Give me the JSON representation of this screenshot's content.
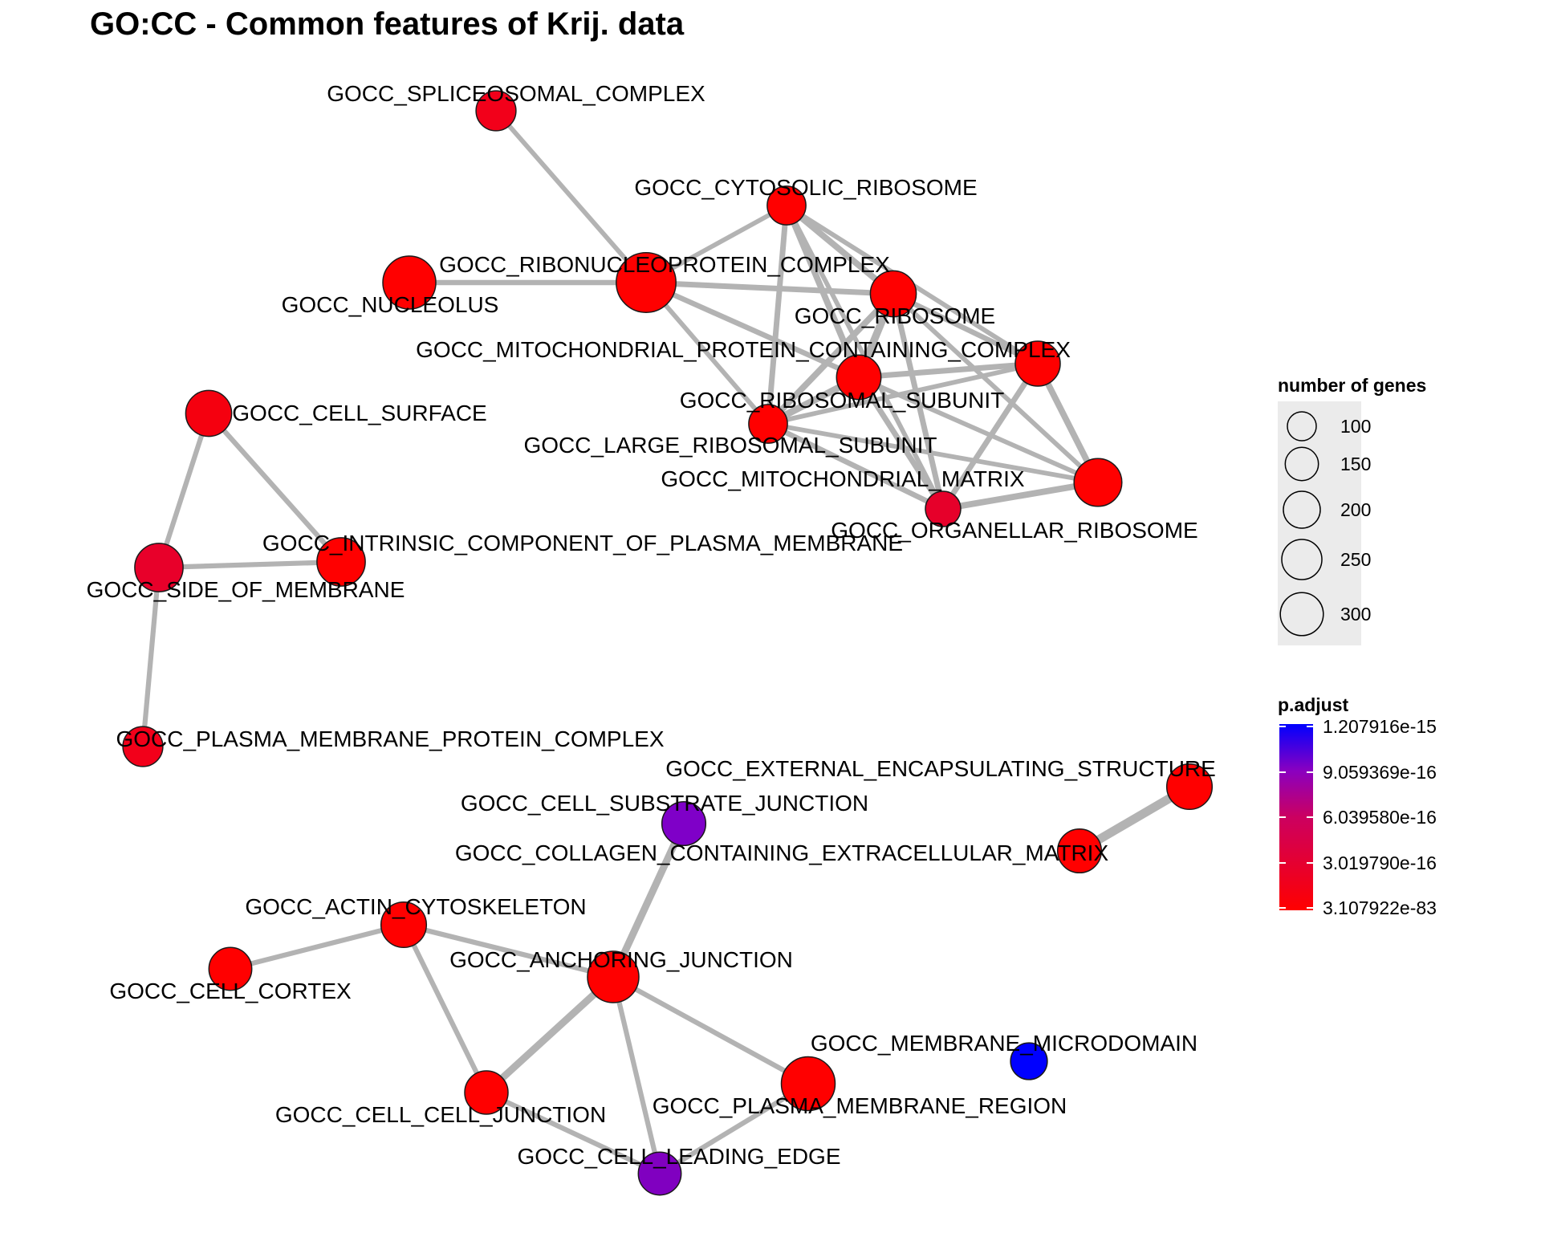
{
  "title": "GO:CC - Common features of Krij. data",
  "colors": {
    "edge": "#b3b3b3",
    "node_stroke": "#1a1a1a",
    "low_p": "#ff0000",
    "high_p": "#0000ff",
    "size_legend_bg": "#ebebeb"
  },
  "nodes": [
    {
      "id": "spliceosomal",
      "label": "GOCC_SPLICEOSOMAL_COMPLEX",
      "genes": 105,
      "color": "#f2001a"
    },
    {
      "id": "cytosolic_ribosome",
      "label": "GOCC_CYTOSOLIC_RIBOSOME",
      "genes": 95,
      "color": "#ff0000"
    },
    {
      "id": "ribonucleoprotein",
      "label": "GOCC_RIBONUCLEOPROTEIN_COMPLEX",
      "genes": 330,
      "color": "#ff0000"
    },
    {
      "id": "nucleolus",
      "label": "GOCC_NUCLEOLUS",
      "genes": 240,
      "color": "#ff0000"
    },
    {
      "id": "ribosome",
      "label": "GOCC_RIBOSOME",
      "genes": 160,
      "color": "#ff0000"
    },
    {
      "id": "mito_protein_complex",
      "label": "GOCC_MITOCHONDRIAL_PROTEIN_CONTAINING_COMPLEX",
      "genes": 150,
      "color": "#ff0000"
    },
    {
      "id": "ribosomal_subunit",
      "label": "GOCC_RIBOSOMAL_SUBUNIT",
      "genes": 145,
      "color": "#ff0000"
    },
    {
      "id": "large_ribosomal_subunit",
      "label": "GOCC_LARGE_RIBOSOMAL_SUBUNIT",
      "genes": 95,
      "color": "#ff0000"
    },
    {
      "id": "mito_matrix",
      "label": "GOCC_MITOCHONDRIAL_MATRIX",
      "genes": 180,
      "color": "#ff0000"
    },
    {
      "id": "organellar_ribosome",
      "label": "GOCC_ORGANELLAR_RIBOSOME",
      "genes": 70,
      "color": "#e6002a"
    },
    {
      "id": "cell_surface",
      "label": "GOCC_CELL_SURFACE",
      "genes": 160,
      "color": "#f5000f"
    },
    {
      "id": "intrinsic_pm",
      "label": "GOCC_INTRINSIC_COMPONENT_OF_PLASMA_MEMBRANE",
      "genes": 185,
      "color": "#ff0000"
    },
    {
      "id": "side_of_membrane",
      "label": "GOCC_SIDE_OF_MEMBRANE",
      "genes": 185,
      "color": "#e8002a"
    },
    {
      "id": "pm_protein_complex",
      "label": "GOCC_PLASMA_MEMBRANE_PROTEIN_COMPLEX",
      "genes": 105,
      "color": "#f2001a"
    },
    {
      "id": "external_encapsulating",
      "label": "GOCC_EXTERNAL_ENCAPSULATING_STRUCTURE",
      "genes": 155,
      "color": "#ff0000"
    },
    {
      "id": "cell_substrate_junction",
      "label": "GOCC_CELL_SUBSTRATE_JUNCTION",
      "genes": 140,
      "color": "#7f00c8"
    },
    {
      "id": "collagen_ecm",
      "label": "GOCC_COLLAGEN_CONTAINING_EXTRACELLULAR_MATRIX",
      "genes": 140,
      "color": "#ff0000"
    },
    {
      "id": "actin_cytoskeleton",
      "label": "GOCC_ACTIN_CYTOSKELETON",
      "genes": 155,
      "color": "#ff0000"
    },
    {
      "id": "cell_cortex",
      "label": "GOCC_CELL_CORTEX",
      "genes": 130,
      "color": "#ff0000"
    },
    {
      "id": "anchoring_junction",
      "label": "GOCC_ANCHORING_JUNCTION",
      "genes": 220,
      "color": "#ff0000"
    },
    {
      "id": "membrane_microdomain",
      "label": "GOCC_MEMBRANE_MICRODOMAIN",
      "genes": 80,
      "color": "#0000ff"
    },
    {
      "id": "cell_cell_junction",
      "label": "GOCC_CELL_CELL_JUNCTION",
      "genes": 135,
      "color": "#ff0000"
    },
    {
      "id": "pm_region",
      "label": "GOCC_PLASMA_MEMBRANE_REGION",
      "genes": 250,
      "color": "#ff0000"
    },
    {
      "id": "leading_edge",
      "label": "GOCC_CELL_LEADING_EDGE",
      "genes": 130,
      "color": "#8000c0"
    }
  ],
  "edges": [
    {
      "source": "spliceosomal",
      "target": "ribonucleoprotein",
      "weight": 0.35
    },
    {
      "source": "nucleolus",
      "target": "ribonucleoprotein",
      "weight": 0.45
    },
    {
      "source": "ribonucleoprotein",
      "target": "cytosolic_ribosome",
      "weight": 0.35
    },
    {
      "source": "ribonucleoprotein",
      "target": "ribosome",
      "weight": 0.5
    },
    {
      "source": "ribonucleoprotein",
      "target": "ribosomal_subunit",
      "weight": 0.45
    },
    {
      "source": "ribonucleoprotein",
      "target": "large_ribosomal_subunit",
      "weight": 0.35
    },
    {
      "source": "cytosolic_ribosome",
      "target": "ribosome",
      "weight": 0.6
    },
    {
      "source": "cytosolic_ribosome",
      "target": "ribosomal_subunit",
      "weight": 0.6
    },
    {
      "source": "cytosolic_ribosome",
      "target": "large_ribosomal_subunit",
      "weight": 0.5
    },
    {
      "source": "cytosolic_ribosome",
      "target": "organellar_ribosome",
      "weight": 0.35
    },
    {
      "source": "cytosolic_ribosome",
      "target": "mito_protein_complex",
      "weight": 0.35
    },
    {
      "source": "ribosome",
      "target": "ribosomal_subunit",
      "weight": 0.8
    },
    {
      "source": "ribosome",
      "target": "large_ribosomal_subunit",
      "weight": 0.6
    },
    {
      "source": "ribosome",
      "target": "organellar_ribosome",
      "weight": 0.5
    },
    {
      "source": "ribosome",
      "target": "mito_protein_complex",
      "weight": 0.45
    },
    {
      "source": "ribosome",
      "target": "mito_matrix",
      "weight": 0.35
    },
    {
      "source": "ribosomal_subunit",
      "target": "large_ribosomal_subunit",
      "weight": 0.7
    },
    {
      "source": "ribosomal_subunit",
      "target": "organellar_ribosome",
      "weight": 0.5
    },
    {
      "source": "ribosomal_subunit",
      "target": "mito_protein_complex",
      "weight": 0.5
    },
    {
      "source": "ribosomal_subunit",
      "target": "mito_matrix",
      "weight": 0.35
    },
    {
      "source": "large_ribosomal_subunit",
      "target": "mito_protein_complex",
      "weight": 0.35
    },
    {
      "source": "large_ribosomal_subunit",
      "target": "organellar_ribosome",
      "weight": 0.45
    },
    {
      "source": "large_ribosomal_subunit",
      "target": "mito_matrix",
      "weight": 0.35
    },
    {
      "source": "mito_protein_complex",
      "target": "mito_matrix",
      "weight": 0.6
    },
    {
      "source": "mito_protein_complex",
      "target": "organellar_ribosome",
      "weight": 0.5
    },
    {
      "source": "mito_matrix",
      "target": "organellar_ribosome",
      "weight": 0.6
    },
    {
      "source": "cell_surface",
      "target": "side_of_membrane",
      "weight": 0.4
    },
    {
      "source": "cell_surface",
      "target": "intrinsic_pm",
      "weight": 0.4
    },
    {
      "source": "side_of_membrane",
      "target": "intrinsic_pm",
      "weight": 0.4
    },
    {
      "source": "side_of_membrane",
      "target": "pm_protein_complex",
      "weight": 0.4
    },
    {
      "source": "external_encapsulating",
      "target": "collagen_ecm",
      "weight": 1.0
    },
    {
      "source": "cell_substrate_junction",
      "target": "anchoring_junction",
      "weight": 0.75
    },
    {
      "source": "actin_cytoskeleton",
      "target": "cell_cortex",
      "weight": 0.4
    },
    {
      "source": "actin_cytoskeleton",
      "target": "anchoring_junction",
      "weight": 0.4
    },
    {
      "source": "actin_cytoskeleton",
      "target": "cell_cell_junction",
      "weight": 0.4
    },
    {
      "source": "anchoring_junction",
      "target": "cell_cell_junction",
      "weight": 0.75
    },
    {
      "source": "anchoring_junction",
      "target": "pm_region",
      "weight": 0.4
    },
    {
      "source": "anchoring_junction",
      "target": "leading_edge",
      "weight": 0.4
    },
    {
      "source": "cell_cell_junction",
      "target": "leading_edge",
      "weight": 0.4
    },
    {
      "source": "pm_region",
      "target": "leading_edge",
      "weight": 0.4
    }
  ],
  "legend_size": {
    "title": "number of genes",
    "values": [
      100,
      150,
      200,
      250,
      300
    ],
    "labels": [
      "100",
      "150",
      "200",
      "250",
      "300"
    ]
  },
  "legend_color": {
    "title": "p.adjust",
    "labels": [
      "1.207916e-15",
      "9.059369e-16",
      "6.039580e-16",
      "3.019790e-16",
      "3.107922e-83"
    ]
  }
}
